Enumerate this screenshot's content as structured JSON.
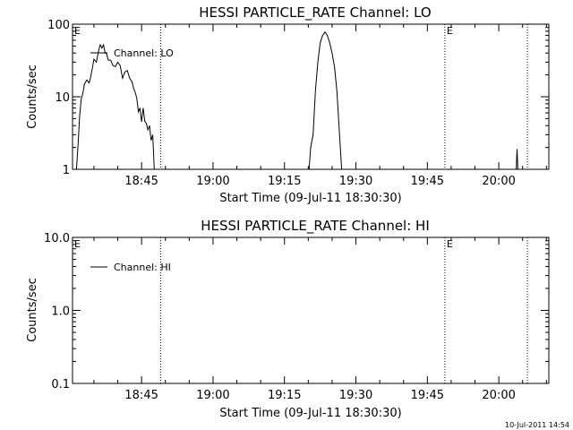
{
  "footer": {
    "timestamp": "10-Jul-2011 14:54"
  },
  "chart_data": [
    {
      "type": "line",
      "title": "HESSI PARTICLE_RATE Channel: LO",
      "xlabel": "Start Time (09-Jul-11 18:30:30)",
      "ylabel": "Counts/sec",
      "yscale": "log",
      "xlim": [
        "18:30:30",
        "20:10:30"
      ],
      "ylim": [
        1,
        100
      ],
      "xticks": [
        "18:45",
        "19:00",
        "19:15",
        "19:30",
        "19:45",
        "20:00"
      ],
      "yticks": [
        "1",
        "10",
        "100"
      ],
      "legend": {
        "label": "Channel: LO",
        "position": "top-left"
      },
      "markers": [
        {
          "time": "18:30:30",
          "label": "E"
        },
        {
          "time": "18:49:00",
          "label": ""
        },
        {
          "time": "19:48:40",
          "label": "E"
        },
        {
          "time": "20:06:00",
          "label": ""
        }
      ],
      "series": [
        {
          "segments": [
            {
              "x": [
                "18:31:20",
                "18:31:40",
                "18:32:00",
                "18:32:20",
                "18:32:40",
                "18:33:00",
                "18:33:30",
                "18:34:00",
                "18:34:20",
                "18:34:40",
                "18:35:00",
                "18:35:30",
                "18:36:00",
                "18:36:20",
                "18:36:40",
                "18:37:00",
                "18:37:20",
                "18:37:40",
                "18:38:00",
                "18:38:30",
                "18:39:00",
                "18:39:30",
                "18:40:00",
                "18:40:30",
                "18:41:00",
                "18:41:30",
                "18:42:00",
                "18:42:30",
                "18:43:00",
                "18:43:20",
                "18:43:40",
                "18:44:00",
                "18:44:20",
                "18:44:40",
                "18:45:00",
                "18:45:20",
                "18:45:40",
                "18:46:00",
                "18:46:20",
                "18:46:40",
                "18:47:00",
                "18:47:20",
                "18:47:40"
              ],
              "y": [
                1,
                2.2,
                5.5,
                9.5,
                11,
                15,
                17,
                15.5,
                19,
                25,
                33,
                30,
                44,
                52,
                47,
                52,
                40,
                39,
                32,
                32,
                27,
                26,
                30,
                27,
                18,
                22,
                23,
                18,
                16,
                13,
                11.5,
                9.5,
                6.2,
                7,
                4.5,
                7,
                4.6,
                4.3,
                3.5,
                4,
                2.5,
                3,
                1
              ]
            },
            {
              "x": [
                "19:20:10",
                "19:20:30",
                "19:21:00",
                "19:21:30",
                "19:22:00",
                "19:22:30",
                "19:23:00",
                "19:23:30",
                "19:24:00",
                "19:24:30",
                "19:25:00",
                "19:25:30",
                "19:26:00",
                "19:26:30",
                "19:27:00"
              ],
              "y": [
                1,
                2,
                3,
                12,
                30,
                55,
                70,
                78,
                70,
                55,
                40,
                26,
                12,
                3.5,
                1
              ]
            },
            {
              "x": [
                "20:03:40",
                "20:03:50",
                "20:04:00"
              ],
              "y": [
                1,
                1.9,
                1
              ]
            }
          ]
        }
      ]
    },
    {
      "type": "line",
      "title": "HESSI PARTICLE_RATE Channel: HI",
      "xlabel": "Start Time (09-Jul-11 18:30:30)",
      "ylabel": "Counts/sec",
      "yscale": "log",
      "xlim": [
        "18:30:30",
        "20:10:30"
      ],
      "ylim": [
        0.1,
        10.0
      ],
      "xticks": [
        "18:45",
        "19:00",
        "19:15",
        "19:30",
        "19:45",
        "20:00"
      ],
      "yticks": [
        "0.1",
        "1.0",
        "10.0"
      ],
      "legend": {
        "label": "Channel: HI",
        "position": "top-left"
      },
      "markers": [
        {
          "time": "18:30:30",
          "label": "E"
        },
        {
          "time": "18:49:00",
          "label": ""
        },
        {
          "time": "19:48:40",
          "label": "E"
        },
        {
          "time": "20:06:00",
          "label": ""
        }
      ],
      "series": []
    }
  ]
}
